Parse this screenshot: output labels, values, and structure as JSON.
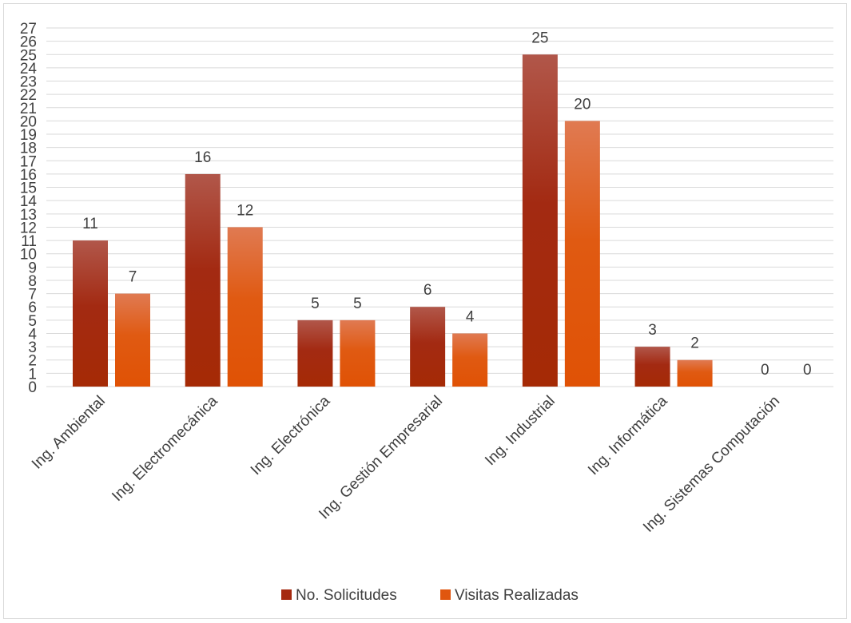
{
  "chart_data": {
    "type": "bar",
    "categories": [
      "Ing. Ambiental",
      "Ing. Electromecánica",
      "Ing. Electrónica",
      "Ing. Gestión Empresarial",
      "Ing. Industrial",
      "Ing. Informática",
      "Ing. Sistemas Computación"
    ],
    "series": [
      {
        "name": "No. Solicitudes",
        "values": [
          11,
          16,
          5,
          6,
          25,
          3,
          0
        ],
        "color": "#a52a10"
      },
      {
        "name": "Visitas Realizadas",
        "values": [
          7,
          12,
          5,
          4,
          20,
          2,
          0
        ],
        "color": "#e0560f"
      }
    ],
    "title": "",
    "xlabel": "",
    "ylabel": "",
    "ylim": [
      0,
      27
    ],
    "yticks": [
      0,
      1,
      2,
      3,
      4,
      5,
      6,
      7,
      8,
      9,
      10,
      11,
      12,
      13,
      14,
      15,
      16,
      17,
      18,
      19,
      20,
      21,
      22,
      23,
      24,
      25,
      26,
      27
    ],
    "grid": true,
    "legend": "bottom",
    "data_labels": true
  }
}
